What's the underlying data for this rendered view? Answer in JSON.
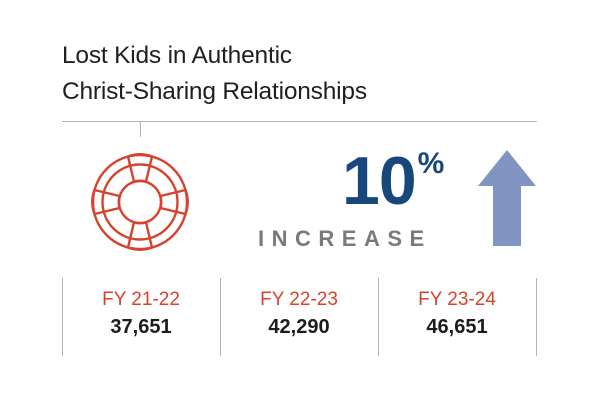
{
  "title": {
    "line1": "Lost Kids in Authentic",
    "line2": "Christ-Sharing Relationships"
  },
  "stat": {
    "number": "10",
    "unit": "%",
    "label": "INCREASE"
  },
  "years": [
    {
      "label": "FY 21-22",
      "value": "37,651"
    },
    {
      "label": "FY 22-23",
      "value": "42,290"
    },
    {
      "label": "FY 23-24",
      "value": "46,651"
    }
  ],
  "colors": {
    "accent_red": "#d5432e",
    "stat_blue": "#17477c",
    "arrow_blue": "#8095c2",
    "text_dark": "#1c1c1c",
    "label_gray": "#7a7a7a",
    "rule_gray": "#b5b5b5"
  },
  "icons": {
    "buoy": "life-buoy-icon",
    "arrow": "up-arrow-icon"
  }
}
